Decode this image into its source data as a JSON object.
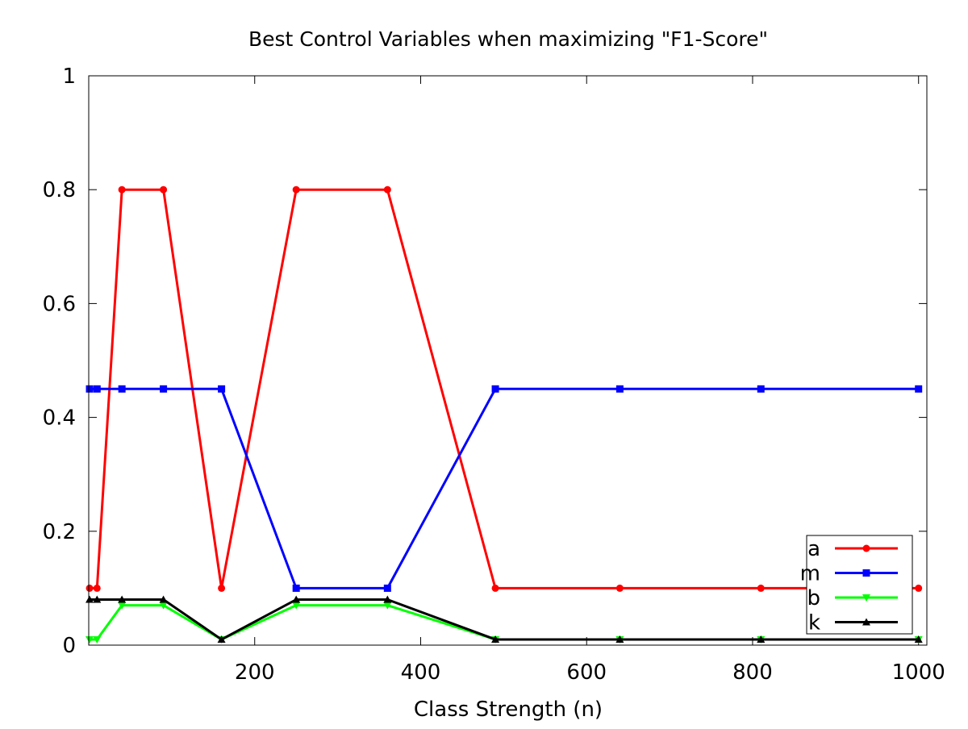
{
  "chart_data": {
    "type": "line",
    "title": "Best Control Variables when maximizing \"F1-Score\"",
    "xlabel": "Class Strength (n)",
    "ylabel": "",
    "xlim": [
      0,
      1010
    ],
    "ylim": [
      0,
      1
    ],
    "xticks": [
      200,
      400,
      600,
      800,
      1000
    ],
    "yticks": [
      0,
      0.2,
      0.4,
      0.6,
      0.8,
      1
    ],
    "ytick_labels": [
      "0",
      "0.2",
      "0.4",
      "0.6",
      "0.8",
      "1"
    ],
    "grid": false,
    "legend_position": "bottom-right",
    "x": [
      1,
      10,
      40,
      90,
      160,
      250,
      360,
      490,
      640,
      810,
      1000
    ],
    "series": [
      {
        "name": "a",
        "color": "#ff0000",
        "marker": "circle",
        "values": [
          0.1,
          0.1,
          0.8,
          0.8,
          0.1,
          0.8,
          0.8,
          0.1,
          0.1,
          0.1,
          0.1
        ]
      },
      {
        "name": "m",
        "color": "#0000ff",
        "marker": "square",
        "values": [
          0.45,
          0.45,
          0.45,
          0.45,
          0.45,
          0.1,
          0.1,
          0.45,
          0.45,
          0.45,
          0.45
        ]
      },
      {
        "name": "b",
        "color": "#00ff00",
        "marker": "triangle-down",
        "values": [
          0.01,
          0.01,
          0.07,
          0.07,
          0.01,
          0.07,
          0.07,
          0.01,
          0.01,
          0.01,
          0.01
        ]
      },
      {
        "name": "k",
        "color": "#000000",
        "marker": "triangle-up",
        "values": [
          0.08,
          0.08,
          0.08,
          0.08,
          0.01,
          0.08,
          0.08,
          0.01,
          0.01,
          0.01,
          0.01
        ]
      }
    ]
  }
}
